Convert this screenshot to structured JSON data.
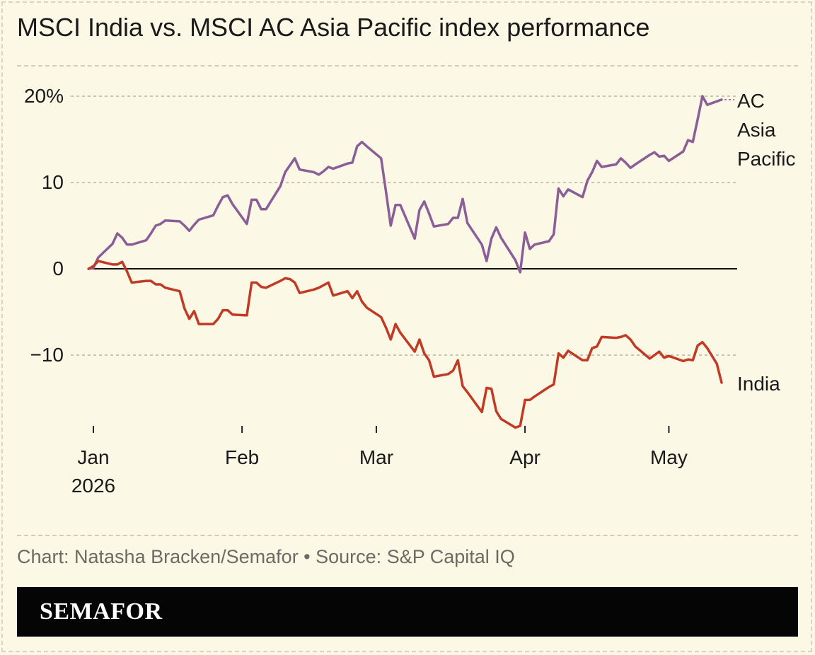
{
  "title": "MSCI India vs. MSCI AC Asia Pacific index performance",
  "credit": "Chart: Natasha Bracken/Semafor • Source: S&P Capital IQ",
  "brand": "SEMAFOR",
  "colors": {
    "background": "#fbf8e6",
    "asia_pacific": "#8b5e97",
    "india": "#c03a24",
    "zero_line": "#111111",
    "grid": "#b8b4a4",
    "text": "#1a1a1a",
    "muted": "#6b6b63"
  },
  "chart_data": {
    "type": "line",
    "title": "MSCI India vs. MSCI AC Asia Pacific index performance",
    "ylabel": "",
    "xlabel": "",
    "ylim": [
      -18,
      20
    ],
    "yticks": [
      {
        "value": 20,
        "label": "20%"
      },
      {
        "value": 10,
        "label": "10"
      },
      {
        "value": 0,
        "label": "0"
      },
      {
        "value": -10,
        "label": "−10"
      }
    ],
    "xticks": [
      {
        "date": "2026-01-01",
        "label": [
          "Jan",
          "2026"
        ]
      },
      {
        "date": "2026-02-01",
        "label": [
          "Feb"
        ]
      },
      {
        "date": "2026-03-01",
        "label": [
          "Mar"
        ]
      },
      {
        "date": "2026-04-01",
        "label": [
          "Apr"
        ]
      },
      {
        "date": "2026-05-01",
        "label": [
          "May"
        ]
      }
    ],
    "xlim": [
      "2026-01-01",
      "2026-05-12"
    ],
    "grid": true,
    "legend": "direct labels at right",
    "series": [
      {
        "name": "AC Asia Pacific",
        "label_lines": [
          "AC",
          "Asia",
          "Pacific"
        ],
        "color": "#8b5e97",
        "points": [
          [
            "2025-12-31",
            0
          ],
          [
            "2026-01-01",
            0.1
          ],
          [
            "2026-01-02",
            1.3
          ],
          [
            "2026-01-05",
            2.9
          ],
          [
            "2026-01-06",
            4.1
          ],
          [
            "2026-01-07",
            3.6
          ],
          [
            "2026-01-08",
            2.8
          ],
          [
            "2026-01-09",
            2.8
          ],
          [
            "2026-01-12",
            3.3
          ],
          [
            "2026-01-13",
            4.1
          ],
          [
            "2026-01-14",
            5.0
          ],
          [
            "2026-01-15",
            5.2
          ],
          [
            "2026-01-16",
            5.6
          ],
          [
            "2026-01-19",
            5.5
          ],
          [
            "2026-01-20",
            5.0
          ],
          [
            "2026-01-21",
            4.4
          ],
          [
            "2026-01-22",
            5.1
          ],
          [
            "2026-01-23",
            5.7
          ],
          [
            "2026-01-26",
            6.2
          ],
          [
            "2026-01-27",
            7.3
          ],
          [
            "2026-01-28",
            8.3
          ],
          [
            "2026-01-29",
            8.5
          ],
          [
            "2026-01-30",
            7.5
          ],
          [
            "2026-02-02",
            5.2
          ],
          [
            "2026-02-03",
            8.0
          ],
          [
            "2026-02-04",
            8.0
          ],
          [
            "2026-02-05",
            6.9
          ],
          [
            "2026-02-06",
            6.9
          ],
          [
            "2026-02-09",
            9.6
          ],
          [
            "2026-02-10",
            11.2
          ],
          [
            "2026-02-11",
            12.0
          ],
          [
            "2026-02-12",
            12.8
          ],
          [
            "2026-02-13",
            11.5
          ],
          [
            "2026-02-16",
            11.2
          ],
          [
            "2026-02-17",
            10.9
          ],
          [
            "2026-02-18",
            11.3
          ],
          [
            "2026-02-19",
            11.8
          ],
          [
            "2026-02-20",
            11.6
          ],
          [
            "2026-02-23",
            12.2
          ],
          [
            "2026-02-24",
            12.3
          ],
          [
            "2026-02-25",
            14.2
          ],
          [
            "2026-02-26",
            14.7
          ],
          [
            "2026-02-27",
            14.2
          ],
          [
            "2026-03-02",
            12.8
          ],
          [
            "2026-03-03",
            9.0
          ],
          [
            "2026-03-04",
            5.0
          ],
          [
            "2026-03-05",
            7.4
          ],
          [
            "2026-03-06",
            7.4
          ],
          [
            "2026-03-09",
            3.5
          ],
          [
            "2026-03-10",
            6.8
          ],
          [
            "2026-03-11",
            7.8
          ],
          [
            "2026-03-12",
            6.4
          ],
          [
            "2026-03-13",
            4.9
          ],
          [
            "2026-03-16",
            5.2
          ],
          [
            "2026-03-17",
            5.9
          ],
          [
            "2026-03-18",
            5.9
          ],
          [
            "2026-03-19",
            8.1
          ],
          [
            "2026-03-20",
            5.3
          ],
          [
            "2026-03-23",
            2.8
          ],
          [
            "2026-03-24",
            0.9
          ],
          [
            "2026-03-25",
            3.5
          ],
          [
            "2026-03-26",
            4.8
          ],
          [
            "2026-03-27",
            3.6
          ],
          [
            "2026-03-30",
            1.0
          ],
          [
            "2026-03-31",
            -0.4
          ],
          [
            "2026-04-01",
            4.2
          ],
          [
            "2026-04-02",
            2.3
          ],
          [
            "2026-04-03",
            2.8
          ],
          [
            "2026-04-06",
            3.2
          ],
          [
            "2026-04-07",
            4.0
          ],
          [
            "2026-04-08",
            9.3
          ],
          [
            "2026-04-09",
            8.4
          ],
          [
            "2026-04-10",
            9.2
          ],
          [
            "2026-04-13",
            8.3
          ],
          [
            "2026-04-14",
            10.2
          ],
          [
            "2026-04-15",
            11.2
          ],
          [
            "2026-04-16",
            12.5
          ],
          [
            "2026-04-17",
            11.8
          ],
          [
            "2026-04-20",
            12.1
          ],
          [
            "2026-04-21",
            12.8
          ],
          [
            "2026-04-22",
            12.3
          ],
          [
            "2026-04-23",
            11.7
          ],
          [
            "2026-04-24",
            12.1
          ],
          [
            "2026-04-27",
            13.2
          ],
          [
            "2026-04-28",
            13.5
          ],
          [
            "2026-04-29",
            13.0
          ],
          [
            "2026-04-30",
            13.1
          ],
          [
            "2026-05-01",
            12.5
          ],
          [
            "2026-05-04",
            13.6
          ],
          [
            "2026-05-05",
            14.9
          ],
          [
            "2026-05-06",
            14.7
          ],
          [
            "2026-05-07",
            17.3
          ],
          [
            "2026-05-08",
            20.0
          ],
          [
            "2026-05-09",
            19.0
          ],
          [
            "2026-05-11",
            19.4
          ],
          [
            "2026-05-12",
            19.6
          ]
        ]
      },
      {
        "name": "India",
        "label_lines": [
          "India"
        ],
        "color": "#c03a24",
        "points": [
          [
            "2025-12-31",
            0
          ],
          [
            "2026-01-01",
            0.3
          ],
          [
            "2026-01-02",
            0.9
          ],
          [
            "2026-01-05",
            0.5
          ],
          [
            "2026-01-06",
            0.5
          ],
          [
            "2026-01-07",
            0.8
          ],
          [
            "2026-01-08",
            -0.3
          ],
          [
            "2026-01-09",
            -1.6
          ],
          [
            "2026-01-12",
            -1.4
          ],
          [
            "2026-01-13",
            -1.4
          ],
          [
            "2026-01-14",
            -1.8
          ],
          [
            "2026-01-15",
            -1.8
          ],
          [
            "2026-01-16",
            -2.2
          ],
          [
            "2026-01-19",
            -2.6
          ],
          [
            "2026-01-20",
            -4.6
          ],
          [
            "2026-01-21",
            -5.8
          ],
          [
            "2026-01-22",
            -4.9
          ],
          [
            "2026-01-23",
            -6.4
          ],
          [
            "2026-01-26",
            -6.4
          ],
          [
            "2026-01-27",
            -5.8
          ],
          [
            "2026-01-28",
            -4.8
          ],
          [
            "2026-01-29",
            -4.8
          ],
          [
            "2026-01-30",
            -5.3
          ],
          [
            "2026-02-02",
            -5.4
          ],
          [
            "2026-02-03",
            -1.6
          ],
          [
            "2026-02-04",
            -1.6
          ],
          [
            "2026-02-05",
            -2.1
          ],
          [
            "2026-02-06",
            -2.2
          ],
          [
            "2026-02-09",
            -1.4
          ],
          [
            "2026-02-10",
            -1.1
          ],
          [
            "2026-02-11",
            -1.2
          ],
          [
            "2026-02-12",
            -1.6
          ],
          [
            "2026-02-13",
            -2.8
          ],
          [
            "2026-02-16",
            -2.4
          ],
          [
            "2026-02-17",
            -2.2
          ],
          [
            "2026-02-18",
            -1.9
          ],
          [
            "2026-02-19",
            -1.6
          ],
          [
            "2026-02-20",
            -3.1
          ],
          [
            "2026-02-23",
            -2.6
          ],
          [
            "2026-02-24",
            -3.4
          ],
          [
            "2026-02-25",
            -2.6
          ],
          [
            "2026-02-26",
            -3.8
          ],
          [
            "2026-02-27",
            -4.5
          ],
          [
            "2026-03-02",
            -5.6
          ],
          [
            "2026-03-03",
            -6.8
          ],
          [
            "2026-03-04",
            -8.2
          ],
          [
            "2026-03-05",
            -6.4
          ],
          [
            "2026-03-06",
            -7.4
          ],
          [
            "2026-03-09",
            -9.6
          ],
          [
            "2026-03-10",
            -8.2
          ],
          [
            "2026-03-11",
            -9.8
          ],
          [
            "2026-03-12",
            -10.6
          ],
          [
            "2026-03-13",
            -12.5
          ],
          [
            "2026-03-16",
            -12.2
          ],
          [
            "2026-03-17",
            -11.8
          ],
          [
            "2026-03-18",
            -10.6
          ],
          [
            "2026-03-19",
            -13.6
          ],
          [
            "2026-03-20",
            -14.3
          ],
          [
            "2026-03-23",
            -16.6
          ],
          [
            "2026-03-24",
            -13.8
          ],
          [
            "2026-03-25",
            -13.9
          ],
          [
            "2026-03-26",
            -16.5
          ],
          [
            "2026-03-27",
            -17.4
          ],
          [
            "2026-03-30",
            -18.4
          ],
          [
            "2026-03-31",
            -18.2
          ],
          [
            "2026-04-01",
            -15.2
          ],
          [
            "2026-04-02",
            -15.2
          ],
          [
            "2026-04-03",
            -14.8
          ],
          [
            "2026-04-06",
            -13.7
          ],
          [
            "2026-04-07",
            -13.4
          ],
          [
            "2026-04-08",
            -9.8
          ],
          [
            "2026-04-09",
            -10.3
          ],
          [
            "2026-04-10",
            -9.5
          ],
          [
            "2026-04-13",
            -10.6
          ],
          [
            "2026-04-14",
            -10.6
          ],
          [
            "2026-04-15",
            -9.2
          ],
          [
            "2026-04-16",
            -9.0
          ],
          [
            "2026-04-17",
            -7.9
          ],
          [
            "2026-04-20",
            -8.0
          ],
          [
            "2026-04-21",
            -7.9
          ],
          [
            "2026-04-22",
            -7.7
          ],
          [
            "2026-04-23",
            -8.2
          ],
          [
            "2026-04-24",
            -9.0
          ],
          [
            "2026-04-27",
            -10.4
          ],
          [
            "2026-04-28",
            -10.0
          ],
          [
            "2026-04-29",
            -9.6
          ],
          [
            "2026-04-30",
            -10.3
          ],
          [
            "2026-05-01",
            -10.1
          ],
          [
            "2026-05-04",
            -10.7
          ],
          [
            "2026-05-05",
            -10.5
          ],
          [
            "2026-05-06",
            -10.6
          ],
          [
            "2026-05-07",
            -8.9
          ],
          [
            "2026-05-08",
            -8.5
          ],
          [
            "2026-05-09",
            -9.2
          ],
          [
            "2026-05-11",
            -11.0
          ],
          [
            "2026-05-12",
            -13.2
          ]
        ]
      }
    ]
  }
}
